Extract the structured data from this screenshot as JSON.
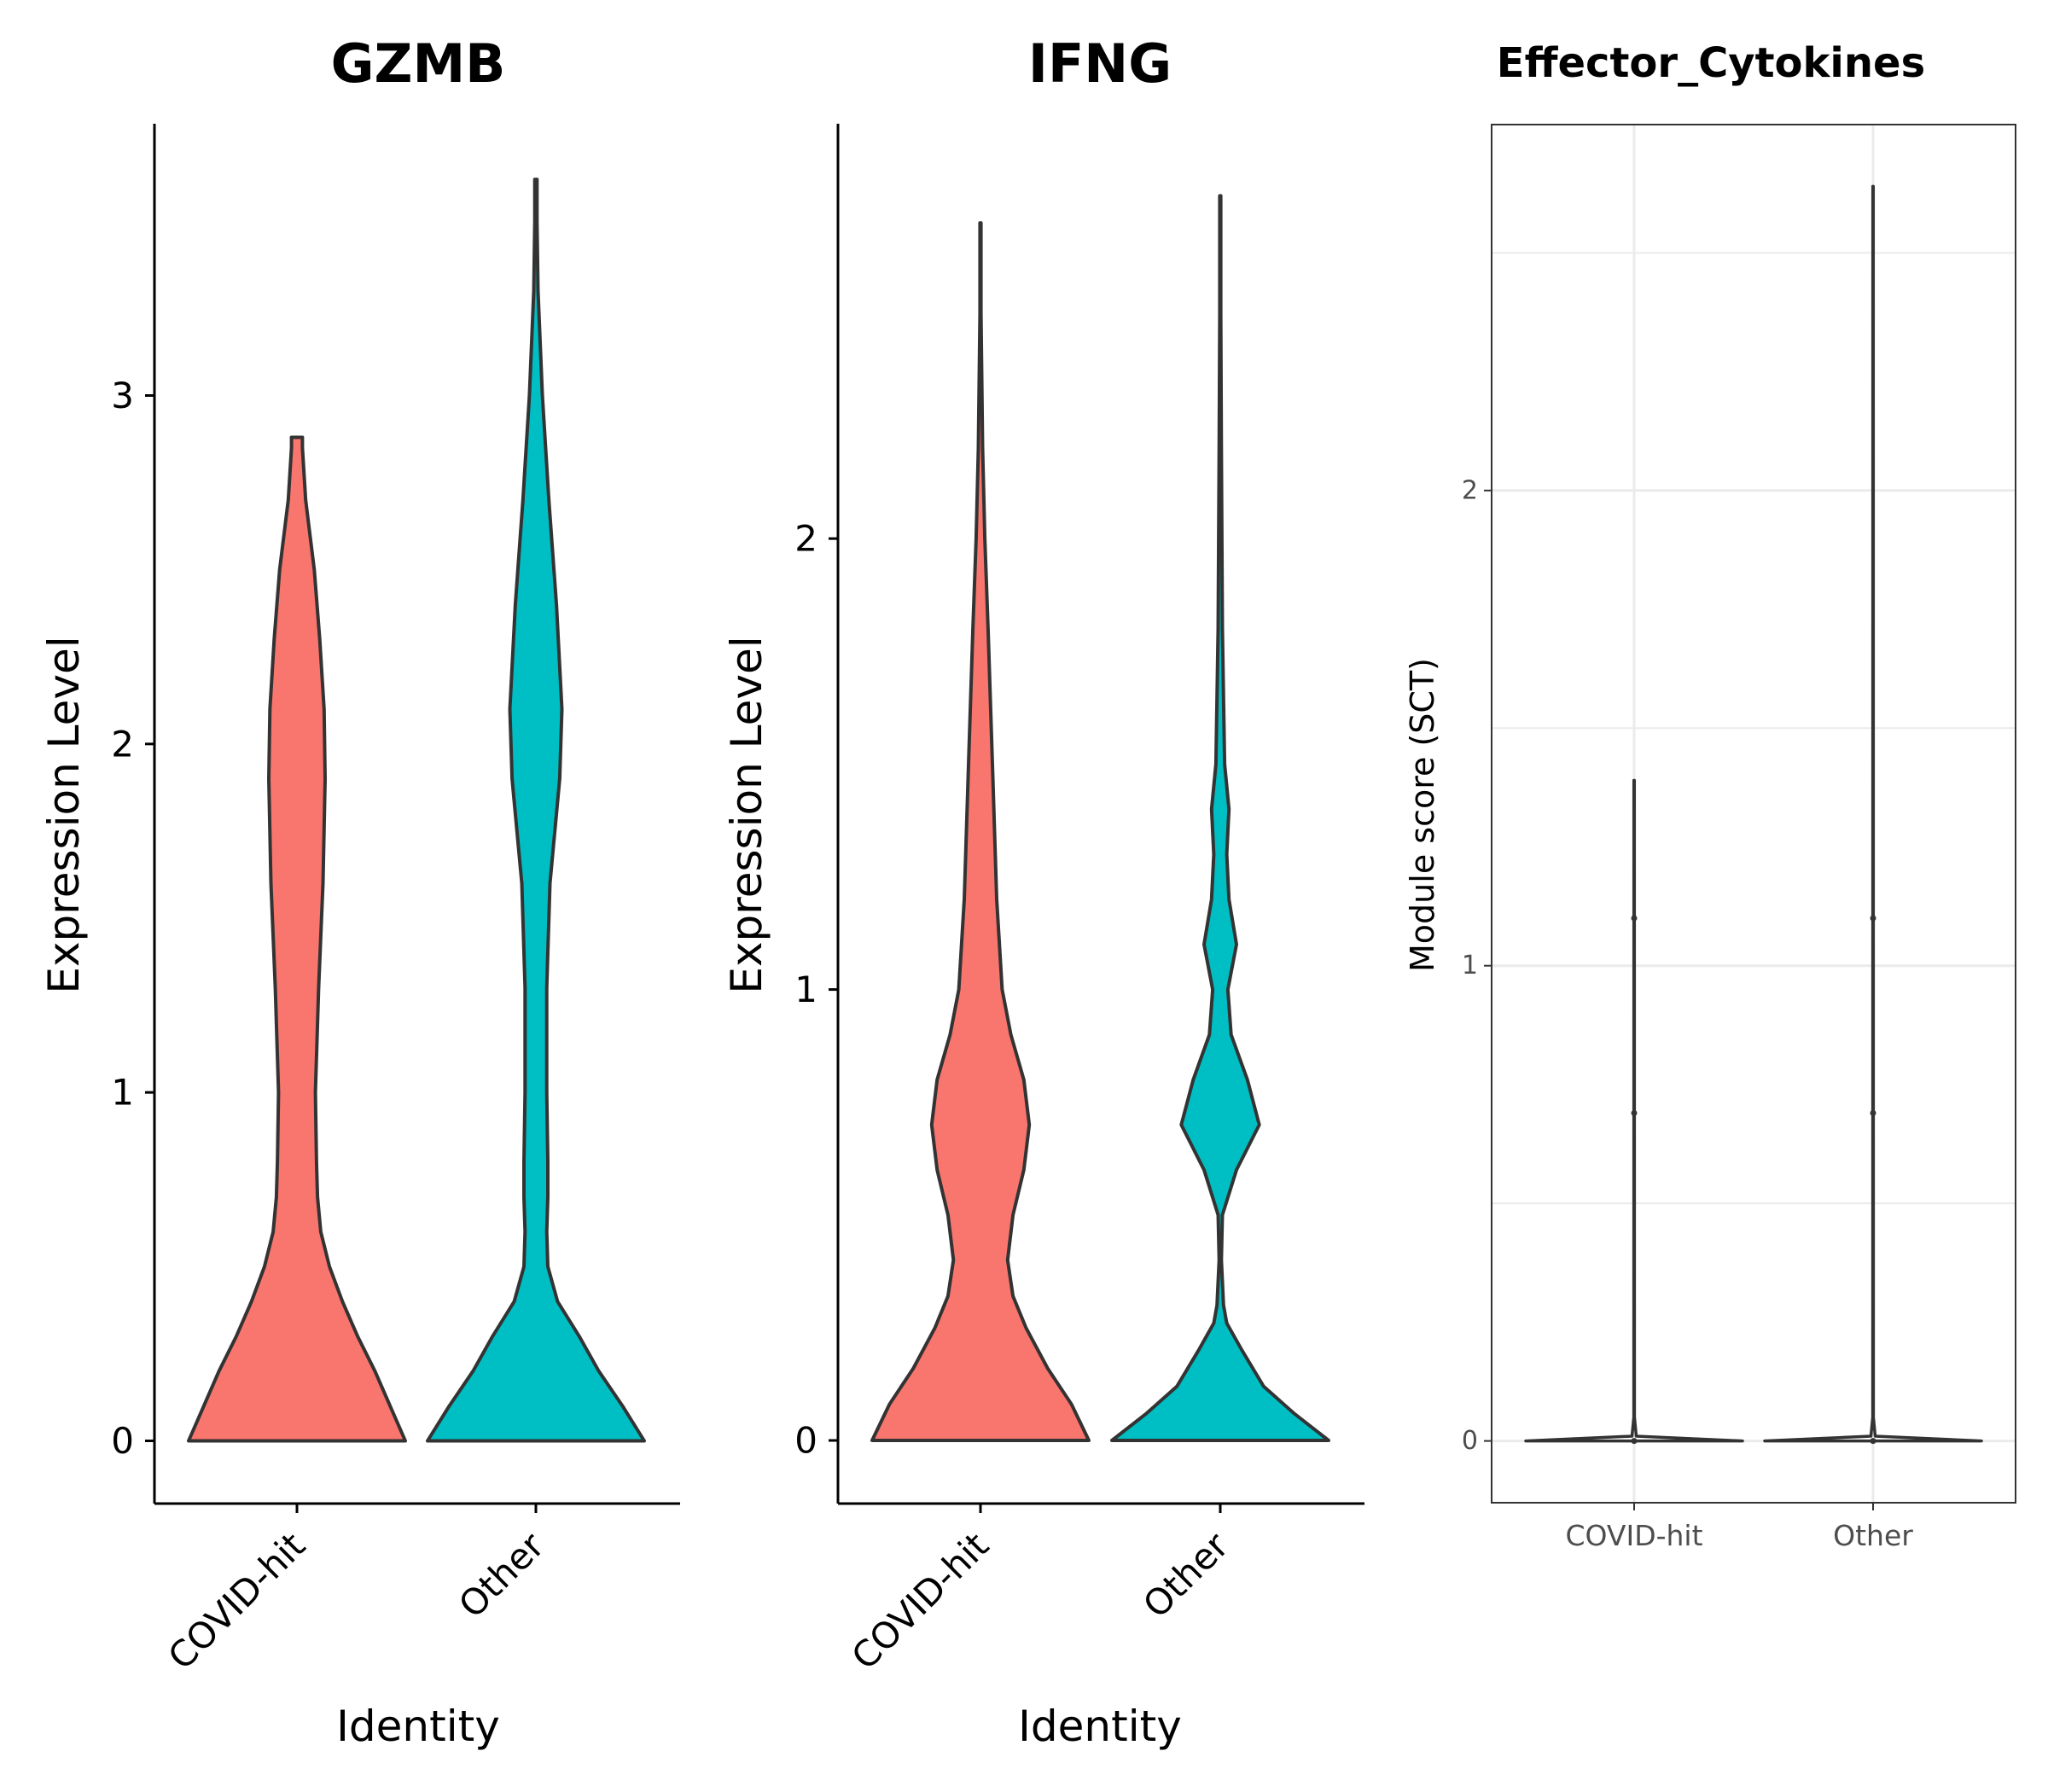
{
  "chart_data": [
    {
      "type": "violin",
      "title": "GZMB",
      "xlabel": "Identity",
      "ylabel": "Expression Level",
      "categories": [
        "COVID-hit",
        "Other"
      ],
      "ylim": [
        -0.18,
        3.78
      ],
      "yticks": [
        0,
        1,
        2,
        3
      ],
      "fill_colors": [
        "#F8766D",
        "#00BFC4"
      ],
      "series": [
        {
          "category": "COVID-hit",
          "max": 2.88,
          "density": [
            [
              0,
              1.0
            ],
            [
              0.1,
              0.86
            ],
            [
              0.2,
              0.72
            ],
            [
              0.3,
              0.56
            ],
            [
              0.4,
              0.42
            ],
            [
              0.5,
              0.3
            ],
            [
              0.6,
              0.22
            ],
            [
              0.7,
              0.19
            ],
            [
              0.8,
              0.18
            ],
            [
              1.0,
              0.17
            ],
            [
              1.3,
              0.2
            ],
            [
              1.6,
              0.24
            ],
            [
              1.9,
              0.26
            ],
            [
              2.1,
              0.25
            ],
            [
              2.3,
              0.21
            ],
            [
              2.5,
              0.16
            ],
            [
              2.7,
              0.08
            ],
            [
              2.85,
              0.05
            ],
            [
              2.88,
              0.05
            ]
          ]
        },
        {
          "category": "Other",
          "max": 3.62,
          "density": [
            [
              0,
              1.0
            ],
            [
              0.1,
              0.8
            ],
            [
              0.2,
              0.58
            ],
            [
              0.3,
              0.4
            ],
            [
              0.4,
              0.2
            ],
            [
              0.5,
              0.11
            ],
            [
              0.6,
              0.1
            ],
            [
              0.7,
              0.11
            ],
            [
              0.8,
              0.11
            ],
            [
              1.0,
              0.1
            ],
            [
              1.3,
              0.1
            ],
            [
              1.6,
              0.13
            ],
            [
              1.9,
              0.22
            ],
            [
              2.1,
              0.24
            ],
            [
              2.4,
              0.19
            ],
            [
              2.7,
              0.12
            ],
            [
              3.0,
              0.06
            ],
            [
              3.3,
              0.02
            ],
            [
              3.5,
              0.01
            ],
            [
              3.62,
              0.01
            ]
          ]
        }
      ]
    },
    {
      "type": "violin",
      "title": "IFNG",
      "xlabel": "Identity",
      "ylabel": "Expression Level",
      "categories": [
        "COVID-hit",
        "Other"
      ],
      "ylim": [
        -0.14,
        2.92
      ],
      "yticks": [
        0,
        1,
        2
      ],
      "fill_colors": [
        "#F8766D",
        "#00BFC4"
      ],
      "series": [
        {
          "category": "COVID-hit",
          "max": 2.7,
          "density": [
            [
              0,
              1.0
            ],
            [
              0.08,
              0.84
            ],
            [
              0.16,
              0.62
            ],
            [
              0.25,
              0.42
            ],
            [
              0.32,
              0.3
            ],
            [
              0.4,
              0.25
            ],
            [
              0.5,
              0.3
            ],
            [
              0.6,
              0.4
            ],
            [
              0.7,
              0.45
            ],
            [
              0.8,
              0.4
            ],
            [
              0.9,
              0.28
            ],
            [
              1.0,
              0.2
            ],
            [
              1.2,
              0.15
            ],
            [
              1.5,
              0.11
            ],
            [
              1.8,
              0.07
            ],
            [
              2.0,
              0.04
            ],
            [
              2.2,
              0.02
            ],
            [
              2.5,
              0.005
            ],
            [
              2.7,
              0.005
            ]
          ]
        },
        {
          "category": "Other",
          "max": 2.76,
          "density": [
            [
              0,
              1.0
            ],
            [
              0.06,
              0.68
            ],
            [
              0.12,
              0.4
            ],
            [
              0.2,
              0.2
            ],
            [
              0.26,
              0.06
            ],
            [
              0.3,
              0.03
            ],
            [
              0.4,
              0.01
            ],
            [
              0.5,
              0.02
            ],
            [
              0.6,
              0.15
            ],
            [
              0.7,
              0.36
            ],
            [
              0.8,
              0.25
            ],
            [
              0.9,
              0.1
            ],
            [
              1.0,
              0.07
            ],
            [
              1.1,
              0.15
            ],
            [
              1.2,
              0.08
            ],
            [
              1.3,
              0.06
            ],
            [
              1.4,
              0.08
            ],
            [
              1.5,
              0.04
            ],
            [
              1.8,
              0.02
            ],
            [
              2.2,
              0.01
            ],
            [
              2.5,
              0.005
            ],
            [
              2.76,
              0.005
            ]
          ]
        }
      ]
    },
    {
      "type": "violin",
      "title": "Effector_Cytokines",
      "xlabel": "",
      "ylabel": "Module score (SCT)",
      "categories": [
        "COVID-hit",
        "Other"
      ],
      "ylim": [
        -0.13,
        2.77
      ],
      "yticks": [
        0,
        1,
        2
      ],
      "grid": true,
      "series": [
        {
          "category": "COVID-hit",
          "max": 1.39,
          "points": [
            0.0,
            0.69,
            1.1
          ],
          "density": [
            [
              0,
              1.0
            ],
            [
              0.01,
              0.02
            ],
            [
              0.05,
              0.003
            ],
            [
              1.39,
              0.002
            ]
          ]
        },
        {
          "category": "Other",
          "max": 2.64,
          "points": [
            0.0,
            0.69,
            1.1
          ],
          "density": [
            [
              0,
              1.0
            ],
            [
              0.01,
              0.02
            ],
            [
              0.05,
              0.003
            ],
            [
              2.64,
              0.002
            ]
          ]
        }
      ]
    }
  ]
}
